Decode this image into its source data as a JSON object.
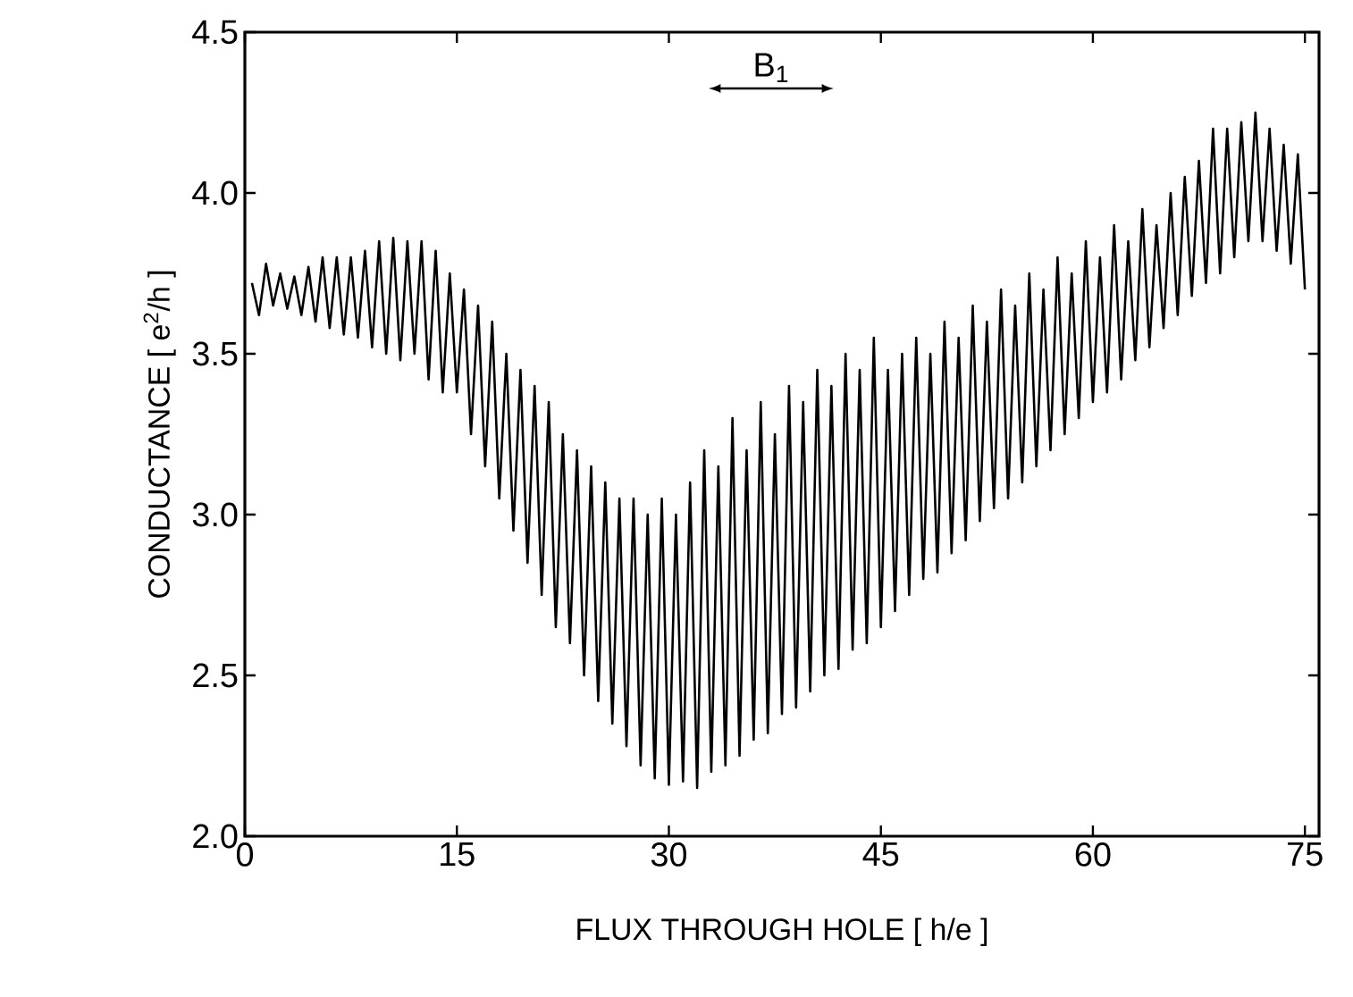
{
  "chart_data": {
    "type": "line",
    "xlabel": "FLUX THROUGH HOLE [ h/e ]",
    "ylabel": "CONDUCTANCE [ e$^{2}$/h ]",
    "xlim": [
      0,
      76
    ],
    "ylim": [
      2.0,
      4.5
    ],
    "xticks": [
      0,
      15,
      30,
      45,
      60,
      75
    ],
    "yticks": [
      {
        "value": 2.0,
        "label": "2.0"
      },
      {
        "value": 2.5,
        "label": "2.5"
      },
      {
        "value": 3.0,
        "label": "3.0"
      },
      {
        "value": 3.5,
        "label": "3.5"
      },
      {
        "value": 4.0,
        "label": "4.0"
      },
      {
        "value": 4.5,
        "label": "4.5"
      }
    ],
    "annotations": [
      "B$_{1}$"
    ],
    "grid": false,
    "marker": "none",
    "line_style": "solid",
    "x": [
      0.5,
      1,
      1.5,
      2,
      2.5,
      3,
      3.5,
      4,
      4.5,
      5,
      5.5,
      6,
      6.5,
      7,
      7.5,
      8,
      8.5,
      9,
      9.5,
      10,
      10.5,
      11,
      11.5,
      12,
      12.5,
      13,
      13.5,
      14,
      14.5,
      15,
      15.5,
      16,
      16.5,
      17,
      17.5,
      18,
      18.5,
      19,
      19.5,
      20,
      20.5,
      21,
      21.5,
      22,
      22.5,
      23,
      23.5,
      24,
      24.5,
      25,
      25.5,
      26,
      26.5,
      27,
      27.5,
      28,
      28.5,
      29,
      29.5,
      30,
      30.5,
      31,
      31.5,
      32,
      32.5,
      33,
      33.5,
      34,
      34.5,
      35,
      35.5,
      36,
      36.5,
      37,
      37.5,
      38,
      38.5,
      39,
      39.5,
      40,
      40.5,
      41,
      41.5,
      42,
      42.5,
      43,
      43.5,
      44,
      44.5,
      45,
      45.5,
      46,
      46.5,
      47,
      47.5,
      48,
      48.5,
      49,
      49.5,
      50,
      50.5,
      51,
      51.5,
      52,
      52.5,
      53,
      53.5,
      54,
      54.5,
      55,
      55.5,
      56,
      56.5,
      57,
      57.5,
      58,
      58.5,
      59,
      59.5,
      60,
      60.5,
      61,
      61.5,
      62,
      62.5,
      63,
      63.5,
      64,
      64.5,
      65,
      65.5,
      66,
      66.5,
      67,
      67.5,
      68,
      68.5,
      69,
      69.5,
      70,
      70.5,
      71,
      71.5,
      72,
      72.5,
      73,
      73.5,
      74,
      74.5,
      75
    ],
    "series": [
      {
        "color": "#000000",
        "values": [
          3.72,
          3.62,
          3.78,
          3.65,
          3.75,
          3.64,
          3.74,
          3.62,
          3.77,
          3.6,
          3.8,
          3.58,
          3.8,
          3.56,
          3.8,
          3.55,
          3.82,
          3.52,
          3.85,
          3.5,
          3.86,
          3.48,
          3.85,
          3.5,
          3.85,
          3.42,
          3.82,
          3.38,
          3.75,
          3.38,
          3.7,
          3.25,
          3.65,
          3.15,
          3.6,
          3.05,
          3.5,
          2.95,
          3.45,
          2.85,
          3.4,
          2.75,
          3.35,
          2.65,
          3.25,
          2.6,
          3.2,
          2.5,
          3.15,
          2.42,
          3.1,
          2.35,
          3.05,
          2.28,
          3.05,
          2.22,
          3.0,
          2.18,
          3.05,
          2.16,
          3.0,
          2.17,
          3.1,
          2.15,
          3.2,
          2.2,
          3.15,
          2.22,
          3.3,
          2.25,
          3.2,
          2.3,
          3.35,
          2.32,
          3.25,
          2.38,
          3.4,
          2.4,
          3.35,
          2.45,
          3.45,
          2.5,
          3.4,
          2.52,
          3.5,
          2.58,
          3.45,
          2.6,
          3.55,
          2.65,
          3.45,
          2.7,
          3.5,
          2.75,
          3.55,
          2.8,
          3.5,
          2.82,
          3.6,
          2.88,
          3.55,
          2.92,
          3.65,
          2.98,
          3.6,
          3.02,
          3.7,
          3.05,
          3.65,
          3.1,
          3.75,
          3.15,
          3.7,
          3.2,
          3.8,
          3.25,
          3.75,
          3.3,
          3.85,
          3.35,
          3.8,
          3.38,
          3.9,
          3.42,
          3.85,
          3.48,
          3.95,
          3.52,
          3.9,
          3.58,
          4.0,
          3.62,
          4.05,
          3.68,
          4.1,
          3.72,
          4.2,
          3.75,
          4.2,
          3.8,
          4.22,
          3.85,
          4.25,
          3.85,
          4.2,
          3.82,
          4.15,
          3.78,
          4.12,
          3.7
        ]
      }
    ]
  }
}
